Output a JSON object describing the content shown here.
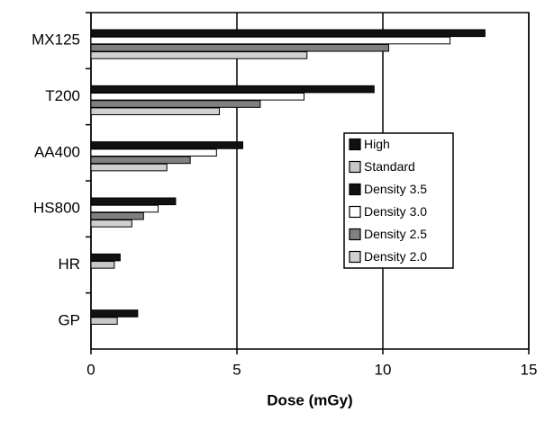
{
  "chart_data": {
    "type": "barh",
    "x_label": "Dose (mGy)",
    "categories": [
      "MX125",
      "T200",
      "AA400",
      "HS800",
      "HR",
      "GP"
    ],
    "series": [
      {
        "name": "High",
        "color": "#111111",
        "values": [
          null,
          null,
          null,
          null,
          1.0,
          1.6
        ]
      },
      {
        "name": "Standard",
        "color": "#c8c8c8",
        "values": [
          null,
          null,
          null,
          null,
          0.8,
          0.9
        ]
      },
      {
        "name": "Density 3.5",
        "color": "#111111",
        "values": [
          13.5,
          9.7,
          5.2,
          2.9,
          null,
          null
        ]
      },
      {
        "name": "Density 3.0",
        "color": "#ffffff",
        "values": [
          12.3,
          7.3,
          4.3,
          2.3,
          null,
          null
        ]
      },
      {
        "name": "Density 2.5",
        "color": "#808080",
        "values": [
          10.2,
          5.8,
          3.4,
          1.8,
          null,
          null
        ]
      },
      {
        "name": "Density 2.0",
        "color": "#d0d0d0",
        "values": [
          7.4,
          4.4,
          2.6,
          1.4,
          null,
          null
        ]
      }
    ],
    "xlim": [
      0,
      15
    ],
    "xticks": [
      0,
      5,
      10,
      15
    ],
    "grid": true,
    "legend": "right"
  }
}
